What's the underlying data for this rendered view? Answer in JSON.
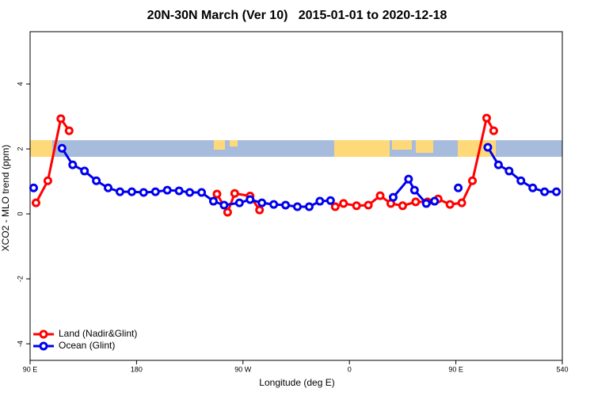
{
  "chart_data": {
    "type": "line",
    "title": "20N-30N March (Ver 10)   2015-01-01 to 2020-12-18",
    "xlabel": "Longitude (deg E)",
    "ylabel": "XCO2 - MLO trend (ppm)",
    "xlim": [
      90,
      540
    ],
    "xticks": [
      {
        "value": 90,
        "label": "90 E"
      },
      180,
      {
        "value": 270,
        "label": "90 W"
      },
      {
        "value": 360,
        "label": "0"
      },
      {
        "value": 450,
        "label": "90 E"
      },
      540
    ],
    "ylim": [
      -4.51,
      5.61
    ],
    "yticks": [
      -4,
      -2,
      0,
      2,
      4
    ],
    "legend": "bottom-left",
    "series": [
      {
        "name": "Land (Nadir&Glint)",
        "color": "#ff0000",
        "x": [
          95,
          105,
          116,
          123,
          null,
          248,
          257,
          263,
          276,
          284,
          null,
          348,
          355,
          366,
          376,
          386,
          395,
          405,
          416,
          426,
          435,
          445,
          455,
          464,
          476,
          482
        ],
        "values": [
          0.34,
          1.02,
          2.93,
          2.56,
          null,
          0.61,
          0.05,
          0.63,
          0.55,
          0.12,
          null,
          0.22,
          0.32,
          0.25,
          0.27,
          0.56,
          0.32,
          0.25,
          0.37,
          0.37,
          0.46,
          0.29,
          0.34,
          1.02,
          2.95,
          2.56
        ]
      },
      {
        "name": "Ocean (Glint)",
        "color": "#0000ee",
        "x": [
          93,
          null,
          117,
          126,
          136,
          146,
          156,
          166,
          176,
          186,
          196,
          206,
          216,
          225,
          235,
          245,
          254,
          267,
          276,
          286,
          296,
          306,
          316,
          326,
          335,
          344,
          null,
          397,
          410,
          415,
          425,
          432,
          null,
          452,
          null,
          477,
          486,
          495,
          505,
          515,
          525,
          535
        ],
        "values": [
          0.8,
          null,
          2.02,
          1.51,
          1.32,
          1.02,
          0.8,
          0.68,
          0.68,
          0.66,
          0.68,
          0.73,
          0.71,
          0.66,
          0.66,
          0.39,
          0.27,
          0.34,
          0.44,
          0.34,
          0.29,
          0.27,
          0.22,
          0.22,
          0.39,
          0.41,
          null,
          0.51,
          1.07,
          0.73,
          0.32,
          0.39,
          null,
          0.8,
          null,
          2.05,
          1.51,
          1.32,
          1.02,
          0.8,
          0.68,
          0.68
        ]
      }
    ]
  }
}
